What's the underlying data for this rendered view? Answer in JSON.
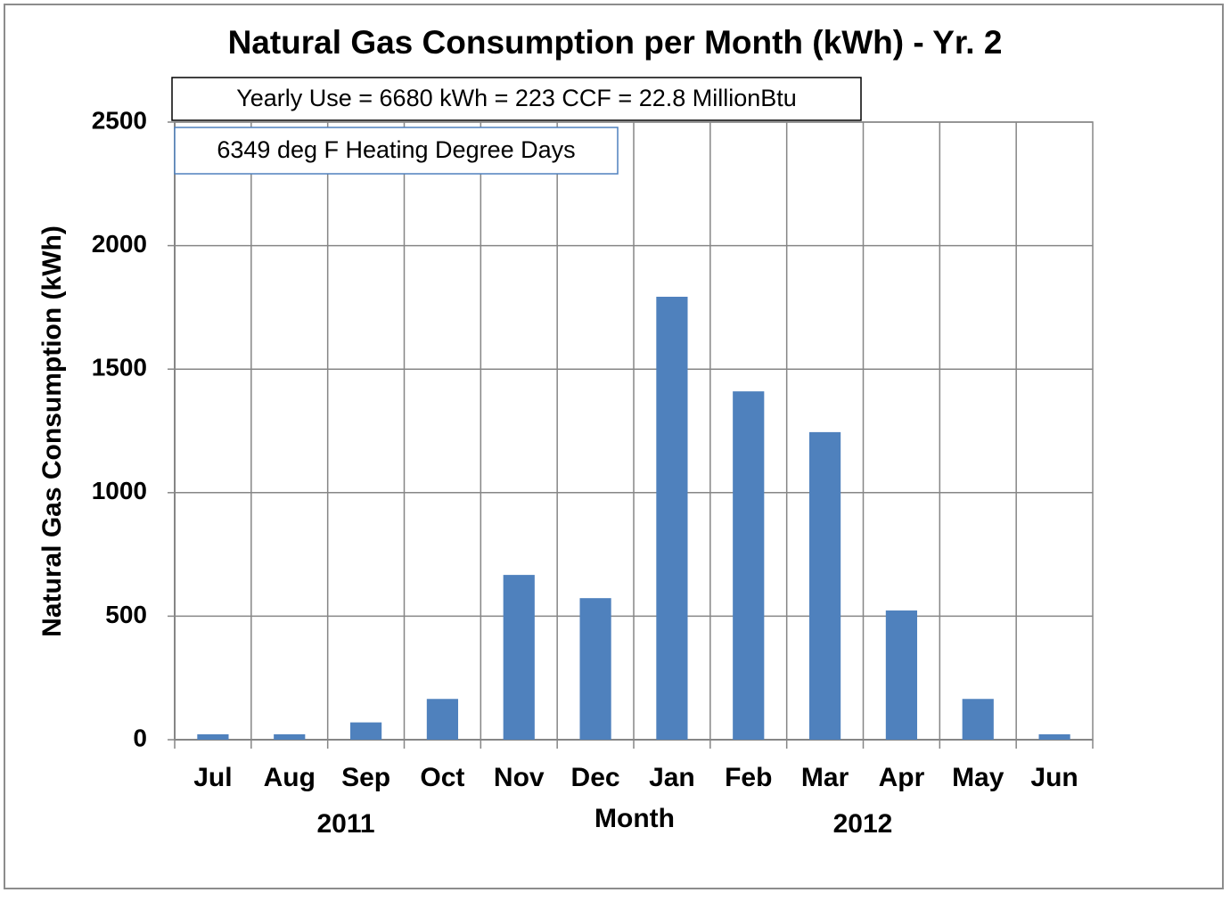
{
  "chart_data": {
    "type": "bar",
    "title": "Natural Gas Consumption per Month (kWh) - Yr. 2",
    "annotations": [
      "Yearly  Use = 6680 kWh = 223 CCF = 22.8 MillionBtu",
      "6349 deg F Heating Degree Days"
    ],
    "x_label": "Month",
    "y_label": "Natural Gas Consumption (kWh)",
    "year_labels": [
      "2011",
      "2012"
    ],
    "categories": [
      "Jul",
      "Aug",
      "Sep",
      "Oct",
      "Nov",
      "Dec",
      "Jan",
      "Feb",
      "Mar",
      "Apr",
      "May",
      "Jun"
    ],
    "values": [
      22,
      22,
      70,
      165,
      667,
      573,
      1793,
      1410,
      1245,
      523,
      165,
      22
    ],
    "color": "#4f81bd",
    "ylim": [
      0,
      2500
    ],
    "yticks": [
      0,
      500,
      1000,
      1500,
      2000,
      2500
    ],
    "grid": true
  }
}
